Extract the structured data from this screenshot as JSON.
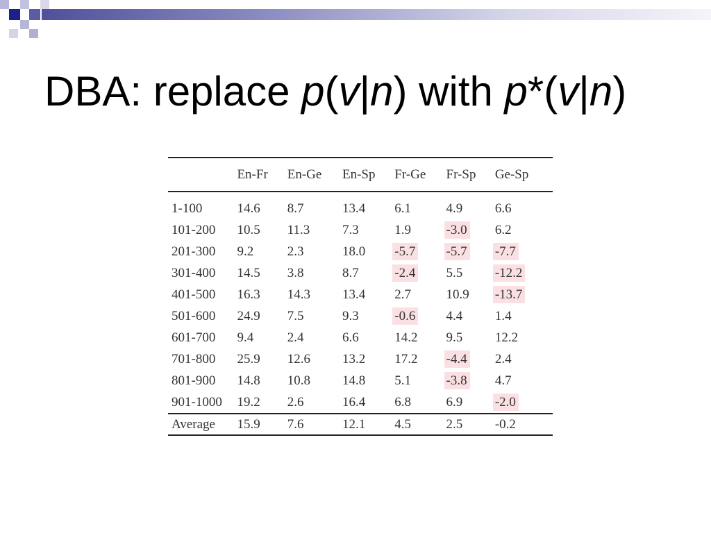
{
  "title": {
    "prefix": "DBA: replace ",
    "p1": "p",
    "open1": "(",
    "v1": "v",
    "bar1": "|",
    "n1": "n",
    "close1": ")",
    "mid": " with ",
    "p2": "p",
    "star": "*",
    "open2": "(",
    "v2": "v",
    "bar2": "|",
    "n2": "n",
    "close2": ")"
  },
  "table": {
    "columns": [
      "",
      "En-Fr",
      "En-Ge",
      "En-Sp",
      "Fr-Ge",
      "Fr-Sp",
      "Ge-Sp"
    ],
    "rows": [
      {
        "label": "1-100",
        "values": [
          "14.6",
          "8.7",
          "13.4",
          "6.1",
          "4.9",
          "6.6"
        ],
        "highlight": [
          false,
          false,
          false,
          false,
          false,
          false
        ]
      },
      {
        "label": "101-200",
        "values": [
          "10.5",
          "11.3",
          "7.3",
          "1.9",
          "-3.0",
          "6.2"
        ],
        "highlight": [
          false,
          false,
          false,
          false,
          true,
          false
        ]
      },
      {
        "label": "201-300",
        "values": [
          "9.2",
          "2.3",
          "18.0",
          "-5.7",
          "-5.7",
          "-7.7"
        ],
        "highlight": [
          false,
          false,
          false,
          true,
          true,
          true
        ]
      },
      {
        "label": "301-400",
        "values": [
          "14.5",
          "3.8",
          "8.7",
          "-2.4",
          "5.5",
          "-12.2"
        ],
        "highlight": [
          false,
          false,
          false,
          true,
          false,
          true
        ]
      },
      {
        "label": "401-500",
        "values": [
          "16.3",
          "14.3",
          "13.4",
          "2.7",
          "10.9",
          "-13.7"
        ],
        "highlight": [
          false,
          false,
          false,
          false,
          false,
          true
        ]
      },
      {
        "label": "501-600",
        "values": [
          "24.9",
          "7.5",
          "9.3",
          "-0.6",
          "4.4",
          "1.4"
        ],
        "highlight": [
          false,
          false,
          false,
          true,
          false,
          false
        ]
      },
      {
        "label": "601-700",
        "values": [
          "9.4",
          "2.4",
          "6.6",
          "14.2",
          "9.5",
          "12.2"
        ],
        "highlight": [
          false,
          false,
          false,
          false,
          false,
          false
        ]
      },
      {
        "label": "701-800",
        "values": [
          "25.9",
          "12.6",
          "13.2",
          "17.2",
          "-4.4",
          "2.4"
        ],
        "highlight": [
          false,
          false,
          false,
          false,
          true,
          false
        ]
      },
      {
        "label": "801-900",
        "values": [
          "14.8",
          "10.8",
          "14.8",
          "5.1",
          "-3.8",
          "4.7"
        ],
        "highlight": [
          false,
          false,
          false,
          false,
          true,
          false
        ]
      },
      {
        "label": "901-1000",
        "values": [
          "19.2",
          "2.6",
          "16.4",
          "6.8",
          "6.9",
          "-2.0"
        ],
        "highlight": [
          false,
          false,
          false,
          false,
          false,
          true
        ]
      }
    ],
    "average": {
      "label": "Average",
      "values": [
        "15.9",
        "7.6",
        "12.1",
        "4.5",
        "2.5",
        "-0.2"
      ]
    }
  },
  "colors": {
    "highlight": "#fbe0e3",
    "corner_dark": "#1f1f8a",
    "corner_light": "#b0b0d6"
  }
}
